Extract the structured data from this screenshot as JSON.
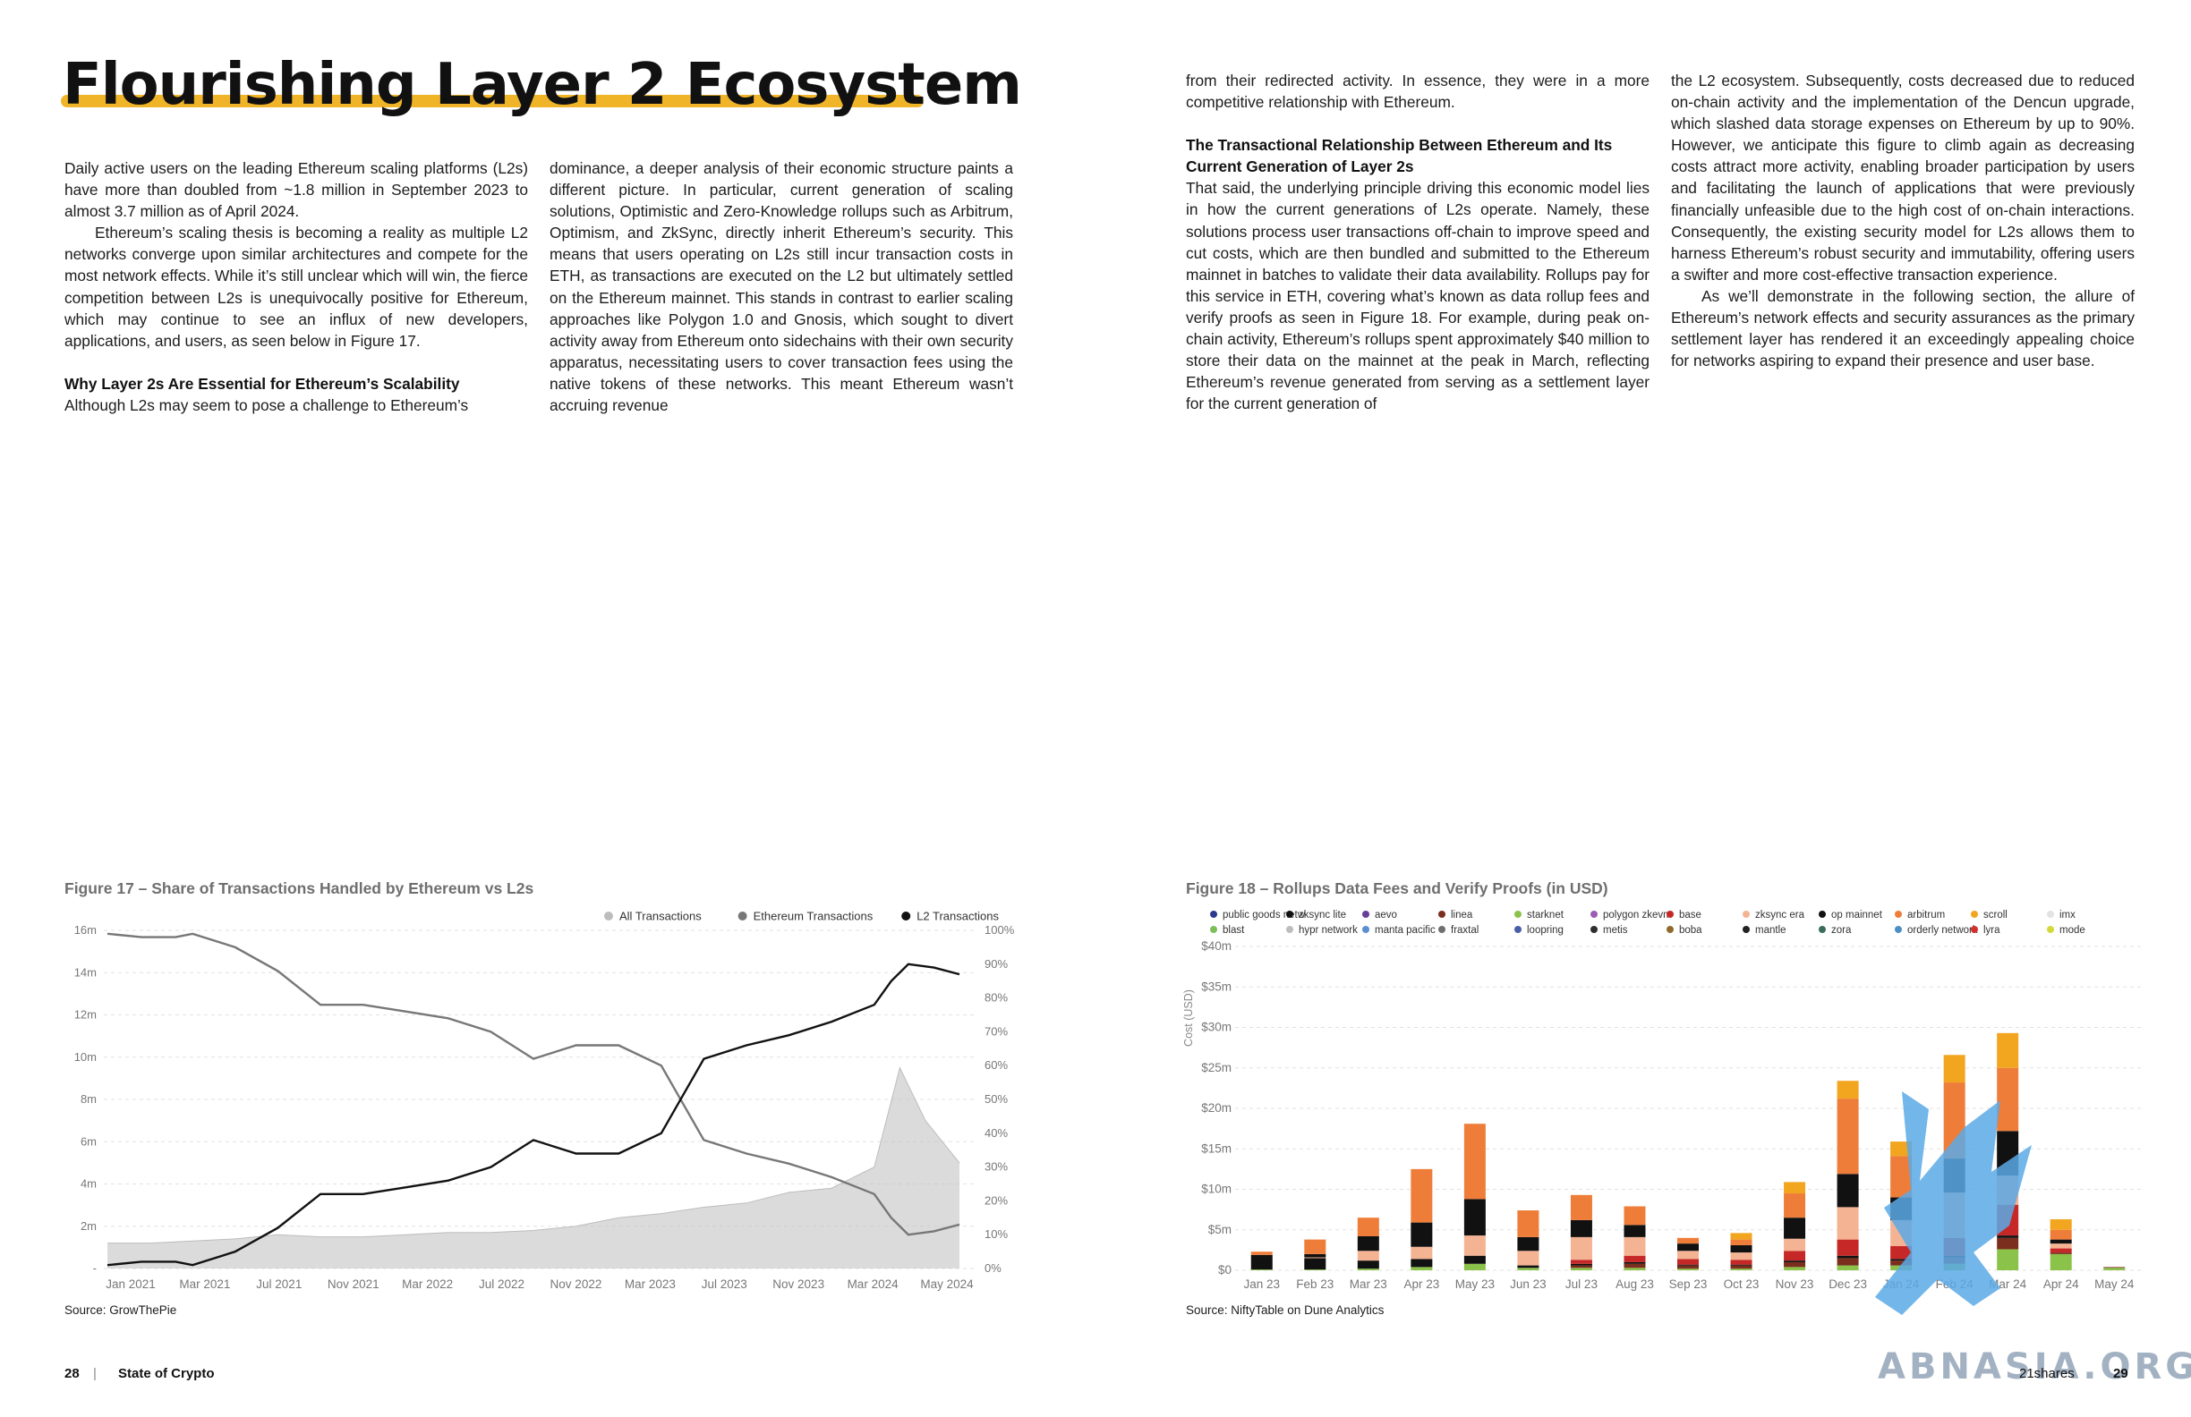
{
  "page": {
    "title": "Flourishing Layer 2 Ecosystem",
    "accent_color": "#f0b429"
  },
  "left_text": {
    "col1": {
      "p1": "Daily active users on the leading Ethereum scaling platforms (L2s) have more than doubled from ~1.8 million in September 2023 to almost 3.7 million as of April 2024.",
      "p2": "Ethereum’s scaling thesis is becoming a reality as multiple L2 networks converge upon similar architectures and compete for the most network effects. While it’s still unclear which will win, the fierce competition between L2s is unequivocally positive for Ethereum, which may continue to see an influx of new developers, applications, and users, as seen below in Figure 17.",
      "h1": "Why Layer 2s Are Essential for Ethereum’s Scalability",
      "p3": "Although L2s may seem to pose a challenge to Ethereum’s"
    },
    "col2": {
      "p1": "dominance, a deeper analysis of their economic structure paints a different picture. In particular, current generation of scaling solutions, Optimistic and Zero-Knowledge rollups such as Arbitrum, Optimism, and ZkSync, directly inherit Ethereum’s security. This means that users operating on L2s still incur transaction costs in ETH, as transactions are executed on the L2 but ultimately settled on the Ethereum mainnet. This stands in contrast to earlier scaling approaches like Polygon 1.0 and Gnosis, which sought to divert activity away from Ethereum onto sidechains with their own security apparatus, necessitating users to cover transaction fees using the native tokens of these networks. This meant Ethereum wasn’t accruing revenue"
    }
  },
  "right_text": {
    "col3": {
      "p1": "from their redirected activity. In essence, they were in a more competitive relationship with Ethereum.",
      "h1": "The Transactional Relationship Between Ethereum and Its Current Generation of Layer 2s",
      "p2": "That said, the underlying principle driving this economic model lies in how the current generations of L2s operate. Namely, these solutions process user transactions off-chain to improve speed and cut costs, which are then bundled and submitted to the Ethereum mainnet in batches to validate their data availability. Rollups pay for this service in ETH, covering what’s known as data rollup fees and verify proofs as seen in Figure 18. For example, during peak on-chain activity, Ethereum’s rollups spent approximately $40 million to store their data on the mainnet at the peak in March, reflecting Ethereum’s revenue generated from serving as a settlement layer for the current generation of"
    },
    "col4": {
      "p1": "the L2 ecosystem. Subsequently, costs decreased due to reduced on-chain activity and the implementation of the Dencun upgrade, which slashed data storage expenses on Ethereum by up to 90%. However, we anticipate this figure to climb again as decreasing costs attract more activity, enabling broader participation by users and facilitating the launch of applications that were previously financially unfeasible due to the high cost of on-chain interactions. Consequently, the existing security model for L2s allows them to harness Ethereum’s robust security and immutability, offering users a swifter and more cost-effective transaction experience.",
      "p2": "As we’ll demonstrate in the following section, the allure of Ethereum’s network effects and security assurances as the primary settlement layer has rendered it an exceedingly appealing choice for networks aspiring to expand their presence and user base."
    }
  },
  "figure17": {
    "title": "Figure 17 – Share of Transactions Handled by Ethereum vs L2s",
    "source": "Source: GrowThePie"
  },
  "figure18": {
    "title": "Figure 18 – Rollups Data Fees and Verify Proofs (in USD)",
    "source": "Source: NiftyTable on Dune Analytics"
  },
  "footer": {
    "left_page_number": "28",
    "left_separator": "|",
    "left_label": "State of Crypto",
    "right_label": "21shares",
    "right_page_number": "29"
  },
  "watermark": {
    "text": "ABNASIA.ORG"
  },
  "chart_data": [
    {
      "type": "line",
      "x_ticks": [
        "Jan 2021",
        "Mar 2021",
        "Jul 2021",
        "Nov 2021",
        "Mar 2022",
        "Jul 2022",
        "Nov 2022",
        "Mar 2023",
        "Jul 2023",
        "Nov 2023",
        "Mar 2024",
        "May 2024"
      ],
      "y_left_ticks": [
        "-",
        "2m",
        "4m",
        "6m",
        "8m",
        "10m",
        "12m",
        "14m",
        "16m"
      ],
      "y_right_ticks": [
        "0%",
        "10%",
        "20%",
        "30%",
        "40%",
        "50%",
        "60%",
        "70%",
        "80%",
        "90%",
        "100%"
      ],
      "y_left_range": [
        0,
        16
      ],
      "y_right_range": [
        0,
        100
      ],
      "legend_position": "top-right",
      "grid": true,
      "series": [
        {
          "name": "All Transactions",
          "color": "#bdbdbd",
          "axis": "left",
          "unit": "m",
          "x": [
            0,
            0.05,
            0.1,
            0.15,
            0.2,
            0.25,
            0.3,
            0.35,
            0.4,
            0.45,
            0.5,
            0.55,
            0.6,
            0.65,
            0.7,
            0.75,
            0.8,
            0.85,
            0.9,
            0.93,
            0.96,
            1.0
          ],
          "values": [
            1.2,
            1.2,
            1.3,
            1.4,
            1.6,
            1.5,
            1.5,
            1.6,
            1.7,
            1.7,
            1.8,
            2.0,
            2.4,
            2.6,
            2.9,
            3.1,
            3.6,
            3.8,
            4.8,
            9.5,
            7.0,
            5.0
          ]
        },
        {
          "name": "Ethereum Transactions",
          "color": "#777777",
          "axis": "right",
          "unit": "%",
          "x": [
            0,
            0.04,
            0.08,
            0.1,
            0.15,
            0.2,
            0.25,
            0.3,
            0.35,
            0.4,
            0.45,
            0.5,
            0.55,
            0.6,
            0.65,
            0.7,
            0.75,
            0.8,
            0.85,
            0.9,
            0.92,
            0.94,
            0.97,
            1.0
          ],
          "values": [
            99,
            98,
            98,
            99,
            95,
            88,
            78,
            78,
            76,
            74,
            70,
            62,
            66,
            66,
            60,
            38,
            34,
            31,
            27,
            22,
            15,
            10,
            11,
            13
          ]
        },
        {
          "name": "L2 Transactions",
          "color": "#111111",
          "axis": "right",
          "unit": "%",
          "x": [
            0,
            0.04,
            0.08,
            0.1,
            0.15,
            0.2,
            0.25,
            0.3,
            0.35,
            0.4,
            0.45,
            0.5,
            0.55,
            0.6,
            0.65,
            0.7,
            0.75,
            0.8,
            0.85,
            0.9,
            0.92,
            0.94,
            0.97,
            1.0
          ],
          "values": [
            1,
            2,
            2,
            1,
            5,
            12,
            22,
            22,
            24,
            26,
            30,
            38,
            34,
            34,
            40,
            62,
            66,
            69,
            73,
            78,
            85,
            90,
            89,
            87
          ]
        }
      ]
    },
    {
      "type": "bar",
      "stacked": true,
      "y_axis_label": "Cost (USD)",
      "y_ticks": [
        "$0",
        "$5m",
        "$10m",
        "$15m",
        "$20m",
        "$25m",
        "$30m",
        "$35m",
        "$40m"
      ],
      "y_range": [
        0,
        40
      ],
      "grid": true,
      "legend_position": "top",
      "legend": [
        {
          "name": "public goods netw",
          "color": "#2b3a8f"
        },
        {
          "name": "zksync lite",
          "color": "#111111"
        },
        {
          "name": "aevo",
          "color": "#6a3d9a"
        },
        {
          "name": "linea",
          "color": "#7b2e1e"
        },
        {
          "name": "starknet",
          "color": "#8bc34a"
        },
        {
          "name": "polygon zkevm",
          "color": "#9c5cb4"
        },
        {
          "name": "base",
          "color": "#c62828"
        },
        {
          "name": "zksync era",
          "color": "#f4b393"
        },
        {
          "name": "op mainnet",
          "color": "#111111"
        },
        {
          "name": "arbitrum",
          "color": "#ef7d3a"
        },
        {
          "name": "scroll",
          "color": "#f2a51f"
        },
        {
          "name": "imx",
          "color": "#e3e3e3"
        },
        {
          "name": "blast",
          "color": "#7bbf5b"
        },
        {
          "name": "hypr network",
          "color": "#bdbdbd"
        },
        {
          "name": "manta pacific",
          "color": "#5b8fd1"
        },
        {
          "name": "fraxtal",
          "color": "#6f6f6f"
        },
        {
          "name": "loopring",
          "color": "#4a5ea8"
        },
        {
          "name": "metis",
          "color": "#2e2e2e"
        },
        {
          "name": "boba",
          "color": "#8e6a2c"
        },
        {
          "name": "mantle",
          "color": "#222222"
        },
        {
          "name": "zora",
          "color": "#3a6b5c"
        },
        {
          "name": "orderly network",
          "color": "#4c8fc4"
        },
        {
          "name": "lyra",
          "color": "#d32f2f"
        },
        {
          "name": "mode",
          "color": "#d4d83b"
        }
      ],
      "categories": [
        "Jan 23",
        "Feb 23",
        "Mar 23",
        "Apr 23",
        "May 23",
        "Jun 23",
        "Jul 23",
        "Aug 23",
        "Sep 23",
        "Oct 23",
        "Nov 23",
        "Dec 23",
        "Jan 24",
        "Feb 24",
        "Mar 24",
        "Apr 24",
        "May 24"
      ],
      "series": [
        {
          "name": "starknet",
          "values": [
            0.1,
            0.1,
            0.2,
            0.4,
            0.8,
            0.3,
            0.3,
            0.3,
            0.2,
            0.2,
            0.4,
            0.6,
            0.6,
            0.8,
            2.6,
            2.0,
            0.3
          ]
        },
        {
          "name": "linea",
          "values": [
            0,
            0,
            0,
            0,
            0,
            0,
            0.3,
            0.5,
            0.4,
            0.4,
            0.6,
            0.9,
            0.6,
            0.8,
            1.4,
            0.2,
            0.1
          ]
        },
        {
          "name": "zksync lite",
          "values": [
            1.5,
            1.4,
            1.0,
            1.0,
            1.0,
            0.3,
            0.2,
            0.2,
            0.1,
            0.1,
            0.2,
            0.3,
            0.2,
            0.2,
            0.3,
            0,
            0
          ]
        },
        {
          "name": "base",
          "values": [
            0,
            0,
            0,
            0,
            0,
            0,
            0.5,
            0.8,
            0.7,
            0.6,
            1.2,
            2.0,
            1.6,
            2.2,
            3.8,
            0.5,
            0
          ]
        },
        {
          "name": "zksync era",
          "values": [
            0,
            0.1,
            1.2,
            1.5,
            2.5,
            1.8,
            2.8,
            2.3,
            1.0,
            0.9,
            1.5,
            4.0,
            3.2,
            5.6,
            3.6,
            0.6,
            0
          ]
        },
        {
          "name": "op mainnet",
          "values": [
            0.3,
            0.4,
            1.8,
            3.0,
            4.5,
            1.7,
            2.1,
            1.5,
            0.9,
            0.9,
            2.6,
            4.1,
            2.8,
            4.2,
            5.5,
            0.5,
            0
          ]
        },
        {
          "name": "arbitrum",
          "values": [
            0.4,
            1.8,
            2.3,
            6.6,
            9.3,
            3.3,
            3.1,
            2.3,
            0.7,
            0.7,
            3.0,
            9.3,
            5.1,
            9.4,
            7.8,
            1.2,
            0
          ]
        },
        {
          "name": "scroll",
          "values": [
            0,
            0,
            0,
            0,
            0,
            0,
            0,
            0,
            0,
            0.8,
            1.4,
            2.2,
            1.8,
            3.4,
            4.3,
            1.3,
            0
          ]
        }
      ]
    }
  ]
}
